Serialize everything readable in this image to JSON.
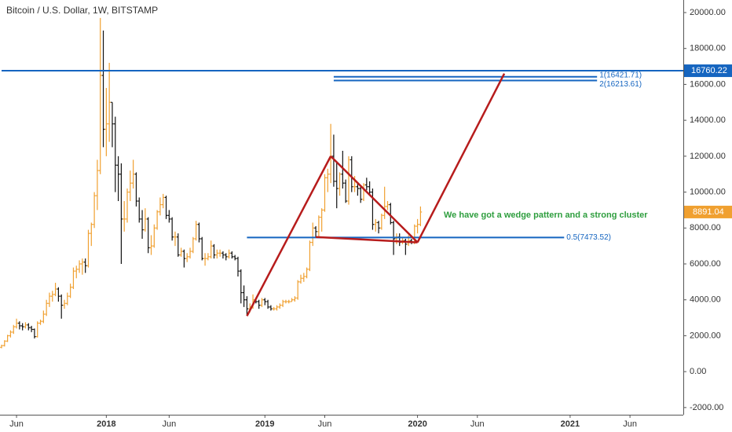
{
  "chart_data": {
    "type": "ohlc",
    "title": "Bitcoin / U.S. Dollar, 1W, BITSTAMP",
    "up_color": "#f0a030",
    "down_color": "#111111",
    "ylim": [
      -2400,
      20700
    ],
    "yticks": [
      {
        "value": -2000,
        "label": "-2000.00"
      },
      {
        "value": 0,
        "label": "0.00"
      },
      {
        "value": 2000,
        "label": "2000.00"
      },
      {
        "value": 4000,
        "label": "4000.00"
      },
      {
        "value": 6000,
        "label": "6000.00"
      },
      {
        "value": 8000,
        "label": "8000.00"
      },
      {
        "value": 10000,
        "label": "10000.00"
      },
      {
        "value": 12000,
        "label": "12000.00"
      },
      {
        "value": 14000,
        "label": "14000.00"
      },
      {
        "value": 16000,
        "label": "16000.00"
      },
      {
        "value": 18000,
        "label": "18000.00"
      },
      {
        "value": 20000,
        "label": "20000.00"
      }
    ],
    "categories": [
      null,
      null,
      null,
      null,
      null,
      "Jun",
      null,
      null,
      null,
      null,
      null,
      null,
      null,
      null,
      null,
      null,
      null,
      null,
      null,
      null,
      null,
      null,
      null,
      null,
      null,
      null,
      null,
      null,
      null,
      null,
      null,
      null,
      null,
      null,
      null,
      "2018",
      null,
      null,
      null,
      null,
      null,
      null,
      null,
      null,
      null,
      null,
      null,
      null,
      null,
      null,
      null,
      null,
      null,
      null,
      null,
      null,
      "Jun",
      null,
      null,
      null,
      null,
      null,
      null,
      null,
      null,
      null,
      null,
      null,
      null,
      null,
      null,
      null,
      null,
      null,
      null,
      null,
      null,
      null,
      null,
      null,
      null,
      null,
      null,
      null,
      null,
      null,
      null,
      null,
      "2019",
      null,
      null,
      null,
      null,
      null,
      null,
      null,
      null,
      null,
      null,
      null,
      null,
      null,
      null,
      null,
      null,
      null,
      null,
      null,
      "Jun",
      null,
      null,
      null,
      null,
      null,
      null,
      null,
      null,
      null,
      null,
      null,
      null,
      null,
      null,
      null,
      null,
      null,
      null,
      null,
      null,
      null,
      null,
      null,
      null,
      null,
      null,
      null,
      null,
      null,
      null,
      "2020",
      null,
      null,
      null,
      null,
      null,
      null,
      null,
      null,
      null,
      null,
      null,
      null,
      null,
      null,
      null,
      null,
      null,
      null,
      null,
      "Jun",
      null,
      null,
      null,
      null,
      null,
      null,
      null,
      null,
      null,
      null,
      null,
      null,
      null,
      null,
      null,
      null,
      null,
      null,
      null,
      null,
      null,
      null,
      null,
      null,
      null,
      null,
      null,
      null,
      null,
      null,
      "2021",
      null,
      null,
      null,
      null,
      null,
      null,
      null,
      null,
      null,
      null,
      null,
      null,
      null,
      null,
      null,
      null,
      null,
      null,
      null,
      "Jun",
      null,
      null,
      null,
      null,
      null,
      null,
      null,
      null,
      null,
      null,
      null,
      null,
      null,
      null,
      null,
      null
    ],
    "bars": [
      [
        1350,
        1500,
        1300,
        1450
      ],
      [
        1450,
        1750,
        1400,
        1700
      ],
      [
        1700,
        2050,
        1650,
        2000
      ],
      [
        2000,
        2300,
        1900,
        2200
      ],
      [
        2200,
        2600,
        2100,
        2500
      ],
      [
        2500,
        2950,
        2400,
        2700
      ],
      [
        2700,
        2800,
        2350,
        2550
      ],
      [
        2550,
        2700,
        2300,
        2500
      ],
      [
        2500,
        2750,
        2400,
        2600
      ],
      [
        2600,
        2700,
        2300,
        2450
      ],
      [
        2450,
        2550,
        2200,
        2350
      ],
      [
        2350,
        2400,
        1850,
        1950
      ],
      [
        1950,
        2800,
        1900,
        2700
      ],
      [
        2700,
        2900,
        2600,
        2800
      ],
      [
        2800,
        3400,
        2700,
        3200
      ],
      [
        3200,
        4000,
        3100,
        3800
      ],
      [
        3800,
        4400,
        3600,
        4200
      ],
      [
        4200,
        4500,
        3900,
        4300
      ],
      [
        4300,
        4950,
        4200,
        4600
      ],
      [
        4600,
        4700,
        3900,
        4200
      ],
      [
        4200,
        4300,
        2950,
        3700
      ],
      [
        3700,
        4000,
        3500,
        3800
      ],
      [
        3800,
        4400,
        3700,
        4200
      ],
      [
        4200,
        4900,
        4100,
        4700
      ],
      [
        4700,
        5800,
        4600,
        5600
      ],
      [
        5600,
        5900,
        5200,
        5700
      ],
      [
        5700,
        6200,
        5500,
        6000
      ],
      [
        6000,
        6300,
        5400,
        6100
      ],
      [
        6100,
        6300,
        5500,
        5900
      ],
      [
        5900,
        7900,
        5800,
        7700
      ],
      [
        7700,
        8300,
        7000,
        8200
      ],
      [
        8200,
        10000,
        8000,
        9800
      ],
      [
        9800,
        11800,
        9000,
        11200
      ],
      [
        11200,
        19700,
        11000,
        16500
      ],
      [
        16500,
        19000,
        12500,
        13500
      ],
      [
        13500,
        15800,
        12000,
        13800
      ],
      [
        13800,
        17200,
        12800,
        15000
      ],
      [
        15000,
        15000,
        12500,
        13800
      ],
      [
        13800,
        14200,
        10000,
        11500
      ],
      [
        11500,
        12000,
        9500,
        11000
      ],
      [
        11000,
        11600,
        6000,
        8500
      ],
      [
        8500,
        9500,
        7800,
        8500
      ],
      [
        8500,
        10200,
        8300,
        10000
      ],
      [
        10000,
        11200,
        9500,
        10500
      ],
      [
        10500,
        11800,
        10200,
        11000
      ],
      [
        11000,
        11100,
        9200,
        9500
      ],
      [
        9500,
        9700,
        8300,
        8500
      ],
      [
        8500,
        9000,
        7400,
        7900
      ],
      [
        7900,
        9100,
        7800,
        8500
      ],
      [
        8500,
        8600,
        6600,
        6900
      ],
      [
        6900,
        7600,
        6500,
        7000
      ],
      [
        7000,
        8200,
        6900,
        8000
      ],
      [
        8000,
        9000,
        7900,
        8900
      ],
      [
        8900,
        9700,
        8700,
        9300
      ],
      [
        9300,
        9900,
        9100,
        9700
      ],
      [
        9700,
        9800,
        8500,
        8700
      ],
      [
        8700,
        9000,
        8300,
        8500
      ],
      [
        8500,
        8600,
        7300,
        7500
      ],
      [
        7500,
        7800,
        7000,
        7500
      ],
      [
        7500,
        7700,
        6400,
        6500
      ],
      [
        6500,
        6900,
        6400,
        6700
      ],
      [
        6700,
        6800,
        5800,
        6300
      ],
      [
        6300,
        6600,
        6100,
        6400
      ],
      [
        6400,
        6900,
        6300,
        6700
      ],
      [
        6700,
        7500,
        6600,
        7400
      ],
      [
        7400,
        8400,
        7300,
        8200
      ],
      [
        8200,
        8300,
        7200,
        7400
      ],
      [
        7400,
        7500,
        6200,
        6300
      ],
      [
        6300,
        6600,
        5900,
        6300
      ],
      [
        6300,
        6600,
        6200,
        6400
      ],
      [
        6400,
        7300,
        6300,
        7000
      ],
      [
        7000,
        7100,
        6300,
        6500
      ],
      [
        6500,
        6800,
        6300,
        6600
      ],
      [
        6600,
        6800,
        6400,
        6600
      ],
      [
        6600,
        6700,
        6300,
        6500
      ],
      [
        6500,
        6600,
        6200,
        6400
      ],
      [
        6400,
        6800,
        6300,
        6600
      ],
      [
        6600,
        6700,
        6300,
        6400
      ],
      [
        6400,
        6500,
        6200,
        6300
      ],
      [
        6300,
        6400,
        5300,
        5600
      ],
      [
        5600,
        5700,
        3800,
        4400
      ],
      [
        4400,
        4800,
        3600,
        4000
      ],
      [
        4000,
        4200,
        3150,
        3500
      ],
      [
        3500,
        3800,
        3300,
        3600
      ],
      [
        3600,
        4300,
        3500,
        4000
      ],
      [
        4000,
        4100,
        3800,
        3900
      ],
      [
        3900,
        4000,
        3500,
        3700
      ],
      [
        3700,
        4100,
        3600,
        4000
      ],
      [
        4000,
        4100,
        3700,
        3900
      ],
      [
        3900,
        4000,
        3500,
        3600
      ],
      [
        3600,
        3700,
        3400,
        3500
      ],
      [
        3500,
        3600,
        3400,
        3500
      ],
      [
        3500,
        3700,
        3400,
        3600
      ],
      [
        3600,
        3800,
        3500,
        3700
      ],
      [
        3700,
        4000,
        3600,
        3900
      ],
      [
        3900,
        4000,
        3800,
        3900
      ],
      [
        3900,
        4000,
        3800,
        3900
      ],
      [
        3900,
        4100,
        3900,
        4000
      ],
      [
        4000,
        4200,
        3900,
        4100
      ],
      [
        4100,
        5100,
        4000,
        5000
      ],
      [
        5000,
        5400,
        4900,
        5200
      ],
      [
        5200,
        5500,
        5000,
        5300
      ],
      [
        5300,
        5800,
        5200,
        5700
      ],
      [
        5700,
        7300,
        5600,
        7200
      ],
      [
        7200,
        8300,
        7000,
        8000
      ],
      [
        8000,
        8100,
        7500,
        7800
      ],
      [
        7800,
        8700,
        7500,
        8600
      ],
      [
        8600,
        9100,
        7800,
        9000
      ],
      [
        9000,
        11000,
        8900,
        10800
      ],
      [
        10800,
        11300,
        10000,
        11000
      ],
      [
        11000,
        13800,
        10500,
        12000
      ],
      [
        12000,
        13200,
        10300,
        10600
      ],
      [
        10600,
        11700,
        9100,
        10200
      ],
      [
        10200,
        11100,
        9800,
        11000
      ],
      [
        11000,
        12300,
        10200,
        10500
      ],
      [
        10500,
        10700,
        9400,
        9500
      ],
      [
        9500,
        12000,
        9300,
        11800
      ],
      [
        11800,
        12000,
        10000,
        10300
      ],
      [
        10300,
        10900,
        10000,
        10300
      ],
      [
        10300,
        10500,
        9800,
        10200
      ],
      [
        10200,
        10300,
        9400,
        9600
      ],
      [
        9600,
        10500,
        9500,
        10400
      ],
      [
        10400,
        10800,
        10100,
        10300
      ],
      [
        10300,
        10600,
        9800,
        10000
      ],
      [
        10000,
        10200,
        7900,
        8200
      ],
      [
        8200,
        8500,
        7800,
        8300
      ],
      [
        8300,
        8400,
        7700,
        8000
      ],
      [
        8000,
        8800,
        7900,
        8700
      ],
      [
        8700,
        10300,
        8500,
        9200
      ],
      [
        9200,
        9500,
        9000,
        9300
      ],
      [
        9300,
        9400,
        8200,
        8300
      ],
      [
        8300,
        8400,
        6500,
        7400
      ],
      [
        7400,
        7700,
        7100,
        7500
      ],
      [
        7500,
        7700,
        7000,
        7200
      ],
      [
        7200,
        7500,
        7100,
        7300
      ],
      [
        7300,
        7400,
        6500,
        7100
      ],
      [
        7100,
        7600,
        7000,
        7300
      ],
      [
        7300,
        7400,
        7100,
        7200
      ],
      [
        7200,
        8200,
        7100,
        8100
      ],
      [
        8100,
        8500,
        7700,
        8200
      ],
      [
        8200,
        9200,
        8100,
        8891.04
      ]
    ],
    "last_price": {
      "value": 8891.04,
      "label": "8891.04"
    },
    "levels": [
      {
        "value": 16760.22,
        "label": "16760.22",
        "from": 0,
        "to": 228,
        "color": "#1565c0"
      },
      {
        "value": 7473.52,
        "label": "0.5(7473.52)",
        "from": 82,
        "to": 188,
        "color": "#1565c0"
      },
      {
        "value": 16421.71,
        "label": "1(16421.71)",
        "from": 111,
        "to": 199,
        "color": "#1565c0"
      },
      {
        "value": 16213.61,
        "label": "2(16213.61)",
        "from": 111,
        "to": 199,
        "color": "#1565c0"
      }
    ],
    "trend_lines": [
      {
        "points": [
          [
            82,
            3100
          ],
          [
            110,
            12000
          ]
        ],
        "color": "#b71c1c"
      },
      {
        "points": [
          [
            110,
            12000
          ],
          [
            139,
            7200
          ]
        ],
        "color": "#b71c1c"
      },
      {
        "points": [
          [
            105,
            7500
          ],
          [
            139,
            7200
          ]
        ],
        "color": "#b71c1c"
      },
      {
        "points": [
          [
            139,
            7200
          ],
          [
            168,
            16600
          ]
        ],
        "color": "#b71c1c"
      }
    ],
    "annotation": {
      "text": "We have got a wedge pattern and a strong cluster",
      "color": "#2e9e3e"
    }
  }
}
